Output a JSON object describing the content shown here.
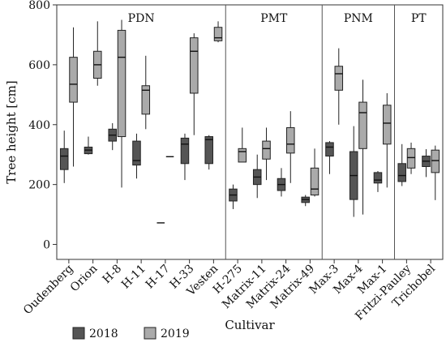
{
  "chart_data": {
    "type": "boxplot",
    "ylabel": "Tree height [cm]",
    "xlabel": "Cultivar",
    "ylim": [
      -50,
      800
    ],
    "yticks": [
      0,
      200,
      400,
      600,
      800
    ],
    "grid": false,
    "legend": {
      "position": "bottom-left",
      "entries": [
        {
          "label": "2018",
          "color": "#555555"
        },
        {
          "label": "2019",
          "color": "#aaaaaa"
        }
      ]
    },
    "panels": [
      {
        "label": "PDN",
        "categories": [
          "Oudenberg",
          "Orion",
          "H-8",
          "H-11",
          "H-17",
          "H-33",
          "Vesten"
        ]
      },
      {
        "label": "PMT",
        "categories": [
          "H-275",
          "Matrix-11",
          "Matrix-24",
          "Matrix-49"
        ]
      },
      {
        "label": "PNM",
        "categories": [
          "Max-3",
          "Max-4",
          "Max-1"
        ]
      },
      {
        "label": "PT",
        "categories": [
          "Fritzi-Pauley",
          "Trichobel"
        ]
      }
    ],
    "series": [
      {
        "name": "2018",
        "color": "#555555",
        "boxes": [
          {
            "category": "Oudenberg",
            "min": 205,
            "q1": 250,
            "median": 295,
            "q3": 320,
            "max": 380
          },
          {
            "category": "Orion",
            "min": 300,
            "q1": 303,
            "median": 315,
            "q3": 325,
            "max": 360
          },
          {
            "category": "H-8",
            "min": 315,
            "q1": 345,
            "median": 365,
            "q3": 385,
            "max": 405
          },
          {
            "category": "H-11",
            "min": 220,
            "q1": 265,
            "median": 280,
            "q3": 345,
            "max": 370
          },
          {
            "category": "H-17",
            "min": 72,
            "q1": 72,
            "median": 72,
            "q3": 72,
            "max": 72
          },
          {
            "category": "H-33",
            "min": 215,
            "q1": 270,
            "median": 335,
            "q3": 355,
            "max": 370
          },
          {
            "category": "Vesten",
            "min": 250,
            "q1": 270,
            "median": 350,
            "q3": 360,
            "max": 365
          },
          {
            "category": "H-275",
            "min": 118,
            "q1": 145,
            "median": 165,
            "q3": 185,
            "max": 200
          },
          {
            "category": "Matrix-11",
            "min": 155,
            "q1": 200,
            "median": 225,
            "q3": 250,
            "max": 300
          },
          {
            "category": "Matrix-24",
            "min": 160,
            "q1": 180,
            "median": 200,
            "q3": 220,
            "max": 255
          },
          {
            "category": "Matrix-49",
            "min": 128,
            "q1": 140,
            "median": 150,
            "q3": 158,
            "max": 165
          },
          {
            "category": "Max-3",
            "min": 235,
            "q1": 295,
            "median": 325,
            "q3": 340,
            "max": 345
          },
          {
            "category": "Max-4",
            "min": 92,
            "q1": 150,
            "median": 230,
            "q3": 310,
            "max": 395
          },
          {
            "category": "Max-1",
            "min": 175,
            "q1": 205,
            "median": 215,
            "q3": 240,
            "max": 245
          },
          {
            "category": "Fritzi-Pauley",
            "min": 195,
            "q1": 210,
            "median": 230,
            "q3": 270,
            "max": 335
          },
          {
            "category": "Trichobel",
            "min": 225,
            "q1": 260,
            "median": 278,
            "q3": 295,
            "max": 318
          }
        ]
      },
      {
        "name": "2019",
        "color": "#aaaaaa",
        "boxes": [
          {
            "category": "Oudenberg",
            "min": 260,
            "q1": 475,
            "median": 535,
            "q3": 625,
            "max": 725
          },
          {
            "category": "Orion",
            "min": 530,
            "q1": 555,
            "median": 600,
            "q3": 645,
            "max": 745
          },
          {
            "category": "H-8",
            "min": 190,
            "q1": 360,
            "median": 625,
            "q3": 715,
            "max": 750
          },
          {
            "category": "H-11",
            "min": 385,
            "q1": 435,
            "median": 515,
            "q3": 530,
            "max": 630
          },
          {
            "category": "H-17",
            "min": 293,
            "q1": 293,
            "median": 293,
            "q3": 293,
            "max": 293
          },
          {
            "category": "H-33",
            "min": 365,
            "q1": 505,
            "median": 645,
            "q3": 690,
            "max": 705
          },
          {
            "category": "Vesten",
            "min": 675,
            "q1": 680,
            "median": 690,
            "q3": 725,
            "max": 745
          },
          {
            "category": "H-275",
            "min": 275,
            "q1": 275,
            "median": 310,
            "q3": 320,
            "max": 390
          },
          {
            "category": "Matrix-11",
            "min": 215,
            "q1": 285,
            "median": 320,
            "q3": 345,
            "max": 390
          },
          {
            "category": "Matrix-24",
            "min": 205,
            "q1": 305,
            "median": 335,
            "q3": 390,
            "max": 445
          },
          {
            "category": "Matrix-49",
            "min": 160,
            "q1": 165,
            "median": 185,
            "q3": 255,
            "max": 320
          },
          {
            "category": "Max-3",
            "min": 400,
            "q1": 515,
            "median": 570,
            "q3": 595,
            "max": 655
          },
          {
            "category": "Max-4",
            "min": 100,
            "q1": 320,
            "median": 440,
            "q3": 475,
            "max": 550
          },
          {
            "category": "Max-1",
            "min": 190,
            "q1": 335,
            "median": 405,
            "q3": 465,
            "max": 505
          },
          {
            "category": "Fritzi-Pauley",
            "min": 235,
            "q1": 255,
            "median": 290,
            "q3": 320,
            "max": 340
          },
          {
            "category": "Trichobel",
            "min": 148,
            "q1": 240,
            "median": 280,
            "q3": 315,
            "max": 330
          }
        ]
      }
    ]
  }
}
